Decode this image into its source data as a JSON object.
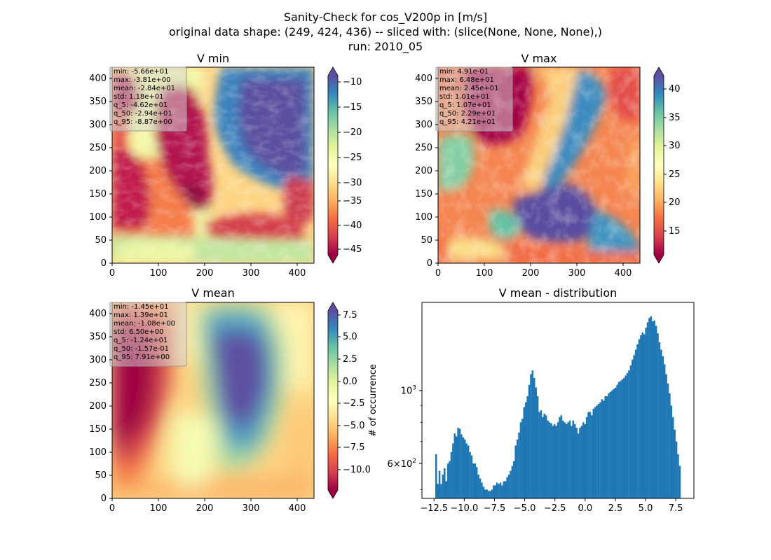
{
  "figure": {
    "title_lines": [
      "Sanity-Check for cos_V200p in [m/s]",
      "original data shape: (249, 424, 436) -- sliced with: (slice(None, None, None),)",
      "run: 2010_05"
    ]
  },
  "chart_data": [
    {
      "type": "heatmap",
      "title": "V min",
      "colormap": "Spectral",
      "x_ticks": [
        "0",
        "100",
        "200",
        "300",
        "400"
      ],
      "y_ticks": [
        "0",
        "50",
        "100",
        "150",
        "200",
        "250",
        "300",
        "350",
        "400"
      ],
      "xlim": [
        0,
        436
      ],
      "ylim": [
        0,
        424
      ],
      "colorbar_ticks": [
        "−10",
        "−15",
        "−20",
        "−25",
        "−30",
        "−35",
        "−40",
        "−45"
      ],
      "colorbar_range": [
        -47.5,
        -8.0
      ],
      "stats": [
        "min: -5.66e+01",
        "max: -3.81e+00",
        "mean: -2.84e+01",
        "std: 1.18e+01",
        "q_5: -4.62e+01",
        "q_50: -2.94e+01",
        "q_95: -8.87e+00"
      ]
    },
    {
      "type": "heatmap",
      "title": "V max",
      "colormap": "Spectral",
      "x_ticks": [
        "0",
        "100",
        "200",
        "300",
        "400"
      ],
      "y_ticks": [
        "0",
        "50",
        "100",
        "150",
        "200",
        "250",
        "300",
        "350",
        "400"
      ],
      "xlim": [
        0,
        436
      ],
      "ylim": [
        0,
        424
      ],
      "colorbar_ticks": [
        "40",
        "35",
        "30",
        "25",
        "20",
        "15"
      ],
      "colorbar_range": [
        10.7,
        42.1
      ],
      "stats": [
        "min: 4.91e-01",
        "max: 6.48e+01",
        "mean: 2.45e+01",
        "std: 1.01e+01",
        "q_5: 1.07e+01",
        "q_50: 2.29e+01",
        "q_95: 4.21e+01"
      ]
    },
    {
      "type": "heatmap",
      "title": "V mean",
      "colormap": "Spectral",
      "x_ticks": [
        "0",
        "100",
        "200",
        "300",
        "400"
      ],
      "y_ticks": [
        "0",
        "50",
        "100",
        "150",
        "200",
        "250",
        "300",
        "350",
        "400"
      ],
      "xlim": [
        0,
        436
      ],
      "ylim": [
        0,
        424
      ],
      "colorbar_ticks": [
        "7.5",
        "5.0",
        "2.5",
        "0.0",
        "−2.5",
        "−5.0",
        "−7.5",
        "−10.0"
      ],
      "colorbar_range": [
        -12.4,
        7.9
      ],
      "stats": [
        "min: -1.45e+01",
        "max: 1.39e+01",
        "mean: -1.08e+00",
        "std: 6.50e+00",
        "q_5: -1.24e+01",
        "q_50: -1.57e-01",
        "q_95: 7.91e+00"
      ]
    },
    {
      "type": "bar",
      "title": "V mean - distribution",
      "ylabel": "# of occurrence",
      "xlim": [
        -13.5,
        9.0
      ],
      "y_scale": "log",
      "ylim": [
        470,
        1850
      ],
      "x_ticks": [
        "−12.5",
        "−10.0",
        "−7.5",
        "−5.0",
        "−2.5",
        "0.0",
        "2.5",
        "5.0",
        "7.5"
      ],
      "x_tick_values": [
        -12.5,
        -10.0,
        -7.5,
        -5.0,
        -2.5,
        0.0,
        2.5,
        5.0,
        7.5
      ],
      "y_major_ticks": [
        {
          "value": 1000,
          "label": "10",
          "exp": "3"
        },
        {
          "value": 600,
          "label": "6×10",
          "exp": "2"
        }
      ],
      "y_minor_ticks": [
        500,
        700,
        800,
        900
      ],
      "bin_range": [
        -12.4,
        7.9
      ],
      "bar_color": "#1f77b4",
      "counts": [
        640,
        520,
        570,
        520,
        555,
        580,
        530,
        600,
        610,
        650,
        690,
        740,
        725,
        770,
        765,
        735,
        720,
        710,
        690,
        680,
        650,
        635,
        600,
        600,
        585,
        555,
        540,
        525,
        510,
        500,
        500,
        495,
        495,
        500,
        515,
        515,
        525,
        520,
        525,
        515,
        530,
        530,
        545,
        555,
        570,
        590,
        610,
        680,
        710,
        745,
        800,
        820,
        890,
        920,
        960,
        1040,
        1120,
        1150,
        1090,
        1020,
        960,
        860,
        870,
        830,
        850,
        840,
        810,
        800,
        795,
        780,
        790,
        780,
        800,
        830,
        840,
        810,
        800,
        790,
        800,
        810,
        780,
        810,
        790,
        770,
        740,
        770,
        780,
        800,
        790,
        830,
        860,
        860,
        840,
        880,
        890,
        900,
        910,
        920,
        940,
        930,
        960,
        960,
        980,
        990,
        1000,
        1010,
        1020,
        1040,
        1060,
        1070,
        1080,
        1090,
        1110,
        1130,
        1150,
        1190,
        1240,
        1280,
        1330,
        1380,
        1430,
        1470,
        1500,
        1480,
        1550,
        1610,
        1660,
        1680,
        1620,
        1630,
        1570,
        1490,
        1400,
        1330,
        1270,
        1200,
        1120,
        1050,
        980,
        900,
        830,
        760,
        700,
        640,
        590
      ]
    }
  ]
}
